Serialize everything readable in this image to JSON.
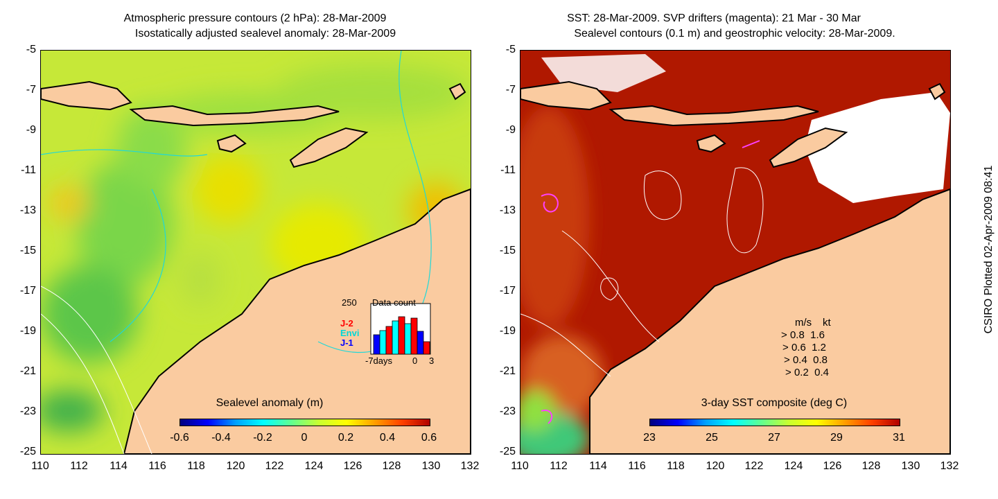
{
  "left_panel": {
    "title_line1": "Atmospheric pressure contours (2 hPa): 28-Mar-2009",
    "title_line2": "Isostatically adjusted sealevel anomaly: 28-Mar-2009",
    "colorbar": {
      "title": "Sealevel anomaly (m)",
      "ticks": [
        "-0.6",
        "-0.4",
        "-0.2",
        "0",
        "0.2",
        "0.4",
        "0.6"
      ]
    },
    "data_count": {
      "max_label": "250",
      "title": "Data count",
      "series": [
        "J-2",
        "Envi",
        "J-1"
      ],
      "xticks": [
        "-7days",
        "0",
        "3"
      ],
      "colors": {
        "J-2": "#ff0000",
        "Envi": "#00ffff",
        "J-1": "#0000ff"
      }
    }
  },
  "right_panel": {
    "title_line1": "SST: 28-Mar-2009. SVP drifters (magenta): 21 Mar - 30 Mar",
    "title_line2": "Sealevel contours (0.1 m) and geostrophic velocity: 28-Mar-2009.",
    "colorbar": {
      "title": "3-day SST composite (deg C)",
      "ticks": [
        "23",
        "25",
        "27",
        "29",
        "31"
      ]
    },
    "velocity_legend": {
      "header_ms": "m/s",
      "header_kt": "kt",
      "rows": [
        {
          "ms": "0.8",
          "kt": "1.6"
        },
        {
          "ms": "0.6",
          "kt": "1.2"
        },
        {
          "ms": "0.4",
          "kt": "0.8"
        },
        {
          "ms": "0.2",
          "kt": "0.4"
        }
      ]
    }
  },
  "axes": {
    "y_ticks": [
      "-5",
      "-7",
      "-9",
      "-11",
      "-13",
      "-15",
      "-17",
      "-19",
      "-21",
      "-23",
      "-25"
    ],
    "x_ticks": [
      "110",
      "112",
      "114",
      "116",
      "118",
      "120",
      "122",
      "124",
      "126",
      "128",
      "130",
      "132"
    ]
  },
  "credit": "CSIRO Plotted 02-Apr-2009 08:41",
  "colors": {
    "land": "#facba0",
    "sla_green": "#7ad64a",
    "sla_yellow": "#e4f000",
    "sst_red": "#b01800",
    "cloud": "#ffffff"
  }
}
